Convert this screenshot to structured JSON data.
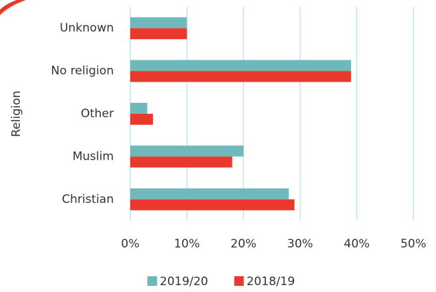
{
  "chart_data": {
    "type": "hbar",
    "y_label": "Religion",
    "categories": [
      "Unknown",
      "No religion",
      "Other",
      "Muslim",
      "Christian"
    ],
    "series": [
      {
        "name": "2019/20",
        "color": "#6fb8bb",
        "values": [
          10,
          39,
          3,
          20,
          28
        ]
      },
      {
        "name": "2018/19",
        "color": "#e8392c",
        "values": [
          10,
          39,
          4,
          18,
          29
        ]
      }
    ],
    "xlim": [
      0,
      50
    ],
    "xticks": [
      {
        "value": 0,
        "label": "0%"
      },
      {
        "value": 10,
        "label": "10%"
      },
      {
        "value": 20,
        "label": "20%"
      },
      {
        "value": 30,
        "label": "30%"
      },
      {
        "value": 40,
        "label": "40%"
      },
      {
        "value": 50,
        "label": "50%"
      }
    ],
    "grid": true,
    "legend": "bottom"
  }
}
